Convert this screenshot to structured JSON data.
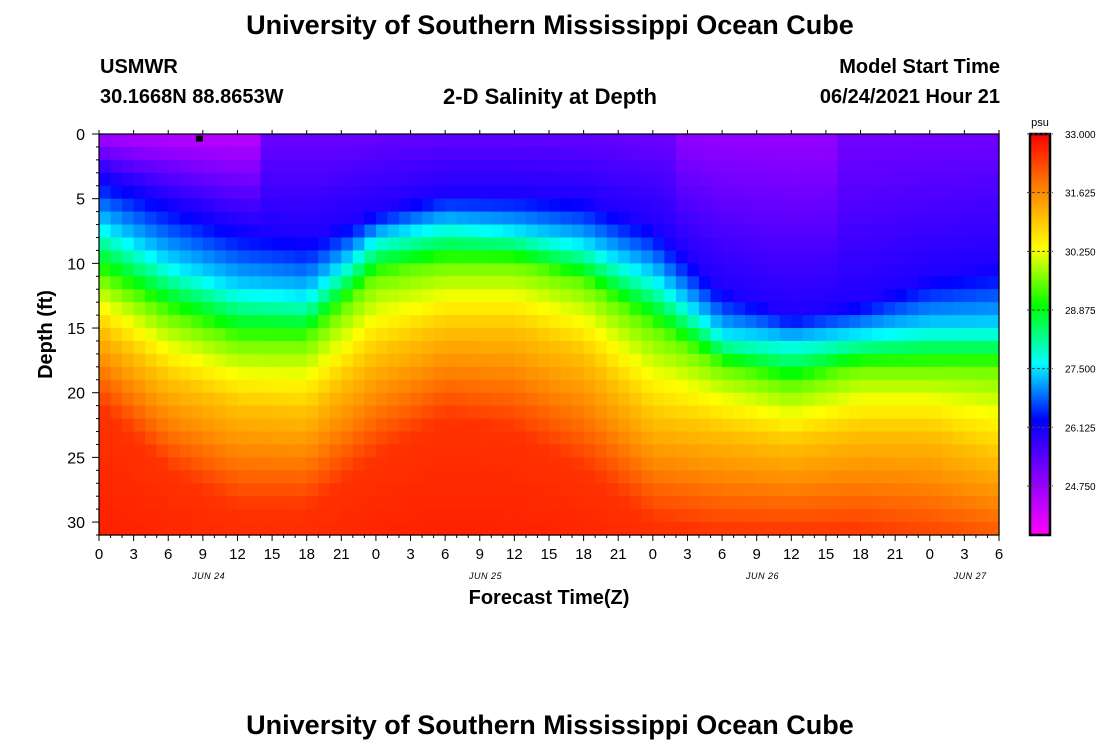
{
  "header": {
    "title": "University of Southern Mississippi Ocean Cube",
    "station": "USMWR",
    "coords": "30.1668N  88.8653W",
    "plot_title": "2-D Salinity at Depth",
    "model_label": "Model Start Time",
    "model_time": "06/24/2021 Hour 21"
  },
  "footer": {
    "title": "University of Southern Mississippi Ocean Cube"
  },
  "chart_data": {
    "type": "heatmap",
    "title": "2-D Salinity at Depth",
    "xlabel": "Forecast Time(Z)",
    "ylabel": "Depth (ft)",
    "x_range_hours": [
      0,
      78
    ],
    "y_range_ft": [
      0,
      31
    ],
    "x_tick_labels": [
      "0",
      "3",
      "6",
      "9",
      "12",
      "15",
      "18",
      "21",
      "0",
      "3",
      "6",
      "9",
      "12",
      "15",
      "18",
      "21",
      "0",
      "3",
      "6",
      "9",
      "12",
      "15",
      "18",
      "21",
      "0",
      "3",
      "6"
    ],
    "date_labels": [
      {
        "label": "JUN 24",
        "hour": 9.5
      },
      {
        "label": "JUN 25",
        "hour": 33.5
      },
      {
        "label": "JUN 26",
        "hour": 57.5
      },
      {
        "label": "JUN 27",
        "hour": 75.5
      }
    ],
    "y_ticks": [
      0,
      5,
      10,
      15,
      20,
      25,
      30
    ],
    "y_tick_labels": [
      "0",
      "5",
      "10",
      "15",
      "20",
      "25",
      "30"
    ],
    "colorbar": {
      "unit": "psu",
      "min": 23.6,
      "max": 33.0,
      "tick_values": [
        33.0,
        31.625,
        30.25,
        28.875,
        27.5,
        26.125,
        24.75
      ],
      "tick_labels": [
        "33.000",
        "31.625",
        "30.250",
        "28.875",
        "27.500",
        "26.125",
        "24.750"
      ],
      "colors": [
        "#ff00ff",
        "#8800ff",
        "#0000ff",
        "#00ffff",
        "#00ff00",
        "#ffff00",
        "#ff8800",
        "#ff0000"
      ]
    },
    "isohaline_depths_ft": {
      "hours": [
        0,
        6,
        12,
        18,
        24,
        30,
        36,
        42,
        48,
        54,
        60,
        66,
        72,
        78
      ],
      "26.0": [
        3,
        5,
        7,
        8,
        6,
        4.5,
        4.5,
        5,
        7,
        12,
        14,
        13,
        11,
        10
      ],
      "27.5": [
        7,
        10,
        12,
        12.5,
        8,
        7,
        7.5,
        8.5,
        11,
        15.5,
        16,
        15.5,
        15,
        15
      ],
      "29.5": [
        11,
        14,
        16,
        16,
        11,
        10,
        10,
        11.5,
        15,
        18,
        19.5,
        18,
        18,
        18
      ],
      "31.0": [
        15,
        19,
        21,
        21.5,
        17,
        15,
        15,
        17,
        22,
        23,
        24,
        23,
        23,
        25
      ],
      "32.5": [
        21,
        26,
        29,
        29,
        25,
        22,
        23,
        26,
        30,
        31,
        31,
        31,
        32,
        33
      ]
    },
    "marker": {
      "hour": 8.7,
      "depth_ft": 0.2
    }
  }
}
